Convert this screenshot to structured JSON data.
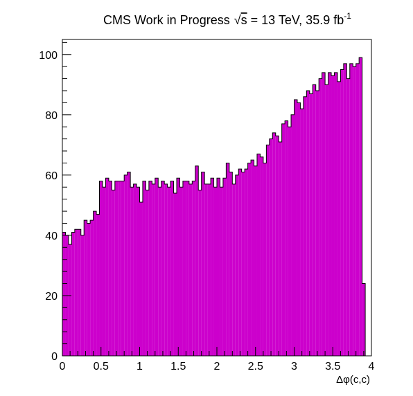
{
  "chart_data": {
    "type": "histogram",
    "title_prefix": "CMS Work in Progress",
    "title_sqrt": "√",
    "title_s": "s",
    "title_energy": " = 13 TeV, 35.9 fb",
    "title_superscript": "-1",
    "xlabel": "Δφ(c,c)",
    "ylabel": "",
    "xlim": [
      0,
      4
    ],
    "ylim": [
      0,
      105
    ],
    "x_ticks": [
      0,
      0.5,
      1,
      1.5,
      2,
      2.5,
      3,
      3.5,
      4
    ],
    "x_tick_labels": [
      "0",
      "0.5",
      "1",
      "1.5",
      "2",
      "2.5",
      "3",
      "3.5",
      "4"
    ],
    "y_ticks": [
      0,
      20,
      40,
      60,
      80,
      100
    ],
    "y_tick_labels": [
      "0",
      "20",
      "40",
      "60",
      "80",
      "100"
    ],
    "fill_color": "#cc00cc",
    "line_color": "#000000",
    "bin_width": 0.04,
    "x_start": 0,
    "values": [
      41,
      40,
      37,
      41,
      42,
      42,
      40,
      45,
      44,
      45,
      48,
      47,
      58,
      56,
      59,
      58,
      55,
      58,
      58,
      58,
      60,
      61,
      56,
      57,
      56,
      51,
      58,
      55,
      58,
      57,
      59,
      56,
      58,
      57,
      56,
      58,
      54,
      59,
      56,
      58,
      58,
      57,
      58,
      63,
      55,
      61,
      57,
      57,
      59,
      56,
      59,
      56,
      59,
      64,
      61,
      57,
      60,
      62,
      61,
      62,
      64,
      65,
      63,
      67,
      66,
      64,
      70,
      72,
      74,
      73,
      71,
      77,
      78,
      76,
      80,
      85,
      84,
      82,
      86,
      88,
      87,
      90,
      88,
      92,
      94,
      90,
      94,
      93,
      94,
      91,
      95,
      97,
      92,
      97,
      96,
      97,
      99,
      24
    ]
  }
}
